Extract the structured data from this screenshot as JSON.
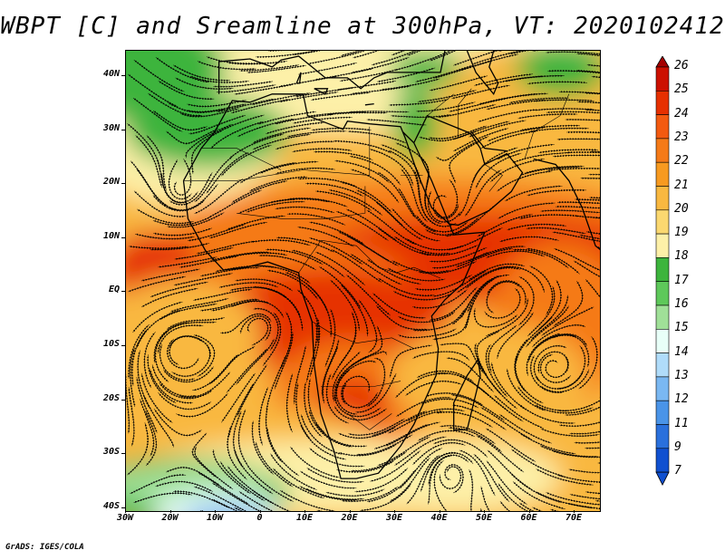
{
  "title": "WBPT [C] and Sreamline at 300hPa, VT: 2020102412",
  "credit": "GrADS: IGES/COLA",
  "lat_labels": [
    "40N",
    "30N",
    "20N",
    "10N",
    "EQ",
    "10S",
    "20S",
    "30S",
    "40S"
  ],
  "lon_labels": [
    "30W",
    "20W",
    "10W",
    "0",
    "10E",
    "20E",
    "30E",
    "40E",
    "50E",
    "60E",
    "70E"
  ],
  "colorbar": {
    "labels": [
      "26",
      "25",
      "24",
      "23",
      "22",
      "21",
      "20",
      "19",
      "18",
      "17",
      "16",
      "15",
      "14",
      "13",
      "12",
      "11",
      "9",
      "7"
    ],
    "colors": [
      "#a40000",
      "#cc1000",
      "#e63000",
      "#f35a10",
      "#f57a18",
      "#f79a20",
      "#f9b840",
      "#fbd870",
      "#fdf0a8",
      "#3cb43c",
      "#5ec85a",
      "#a0e098",
      "#e8fff8",
      "#b0dcfa",
      "#7ab8f2",
      "#4a94e8",
      "#2a70dc",
      "#1050d0"
    ]
  },
  "map": {
    "palette": {
      "ocean_warm": "#f57a18",
      "hot": "#e63000",
      "mid": "#f9b840",
      "cool": "#fdf0a8",
      "green": "#3cb43c",
      "light_green": "#a0e098",
      "cyan": "#e8fff8",
      "blue": "#7ab8f2"
    }
  }
}
